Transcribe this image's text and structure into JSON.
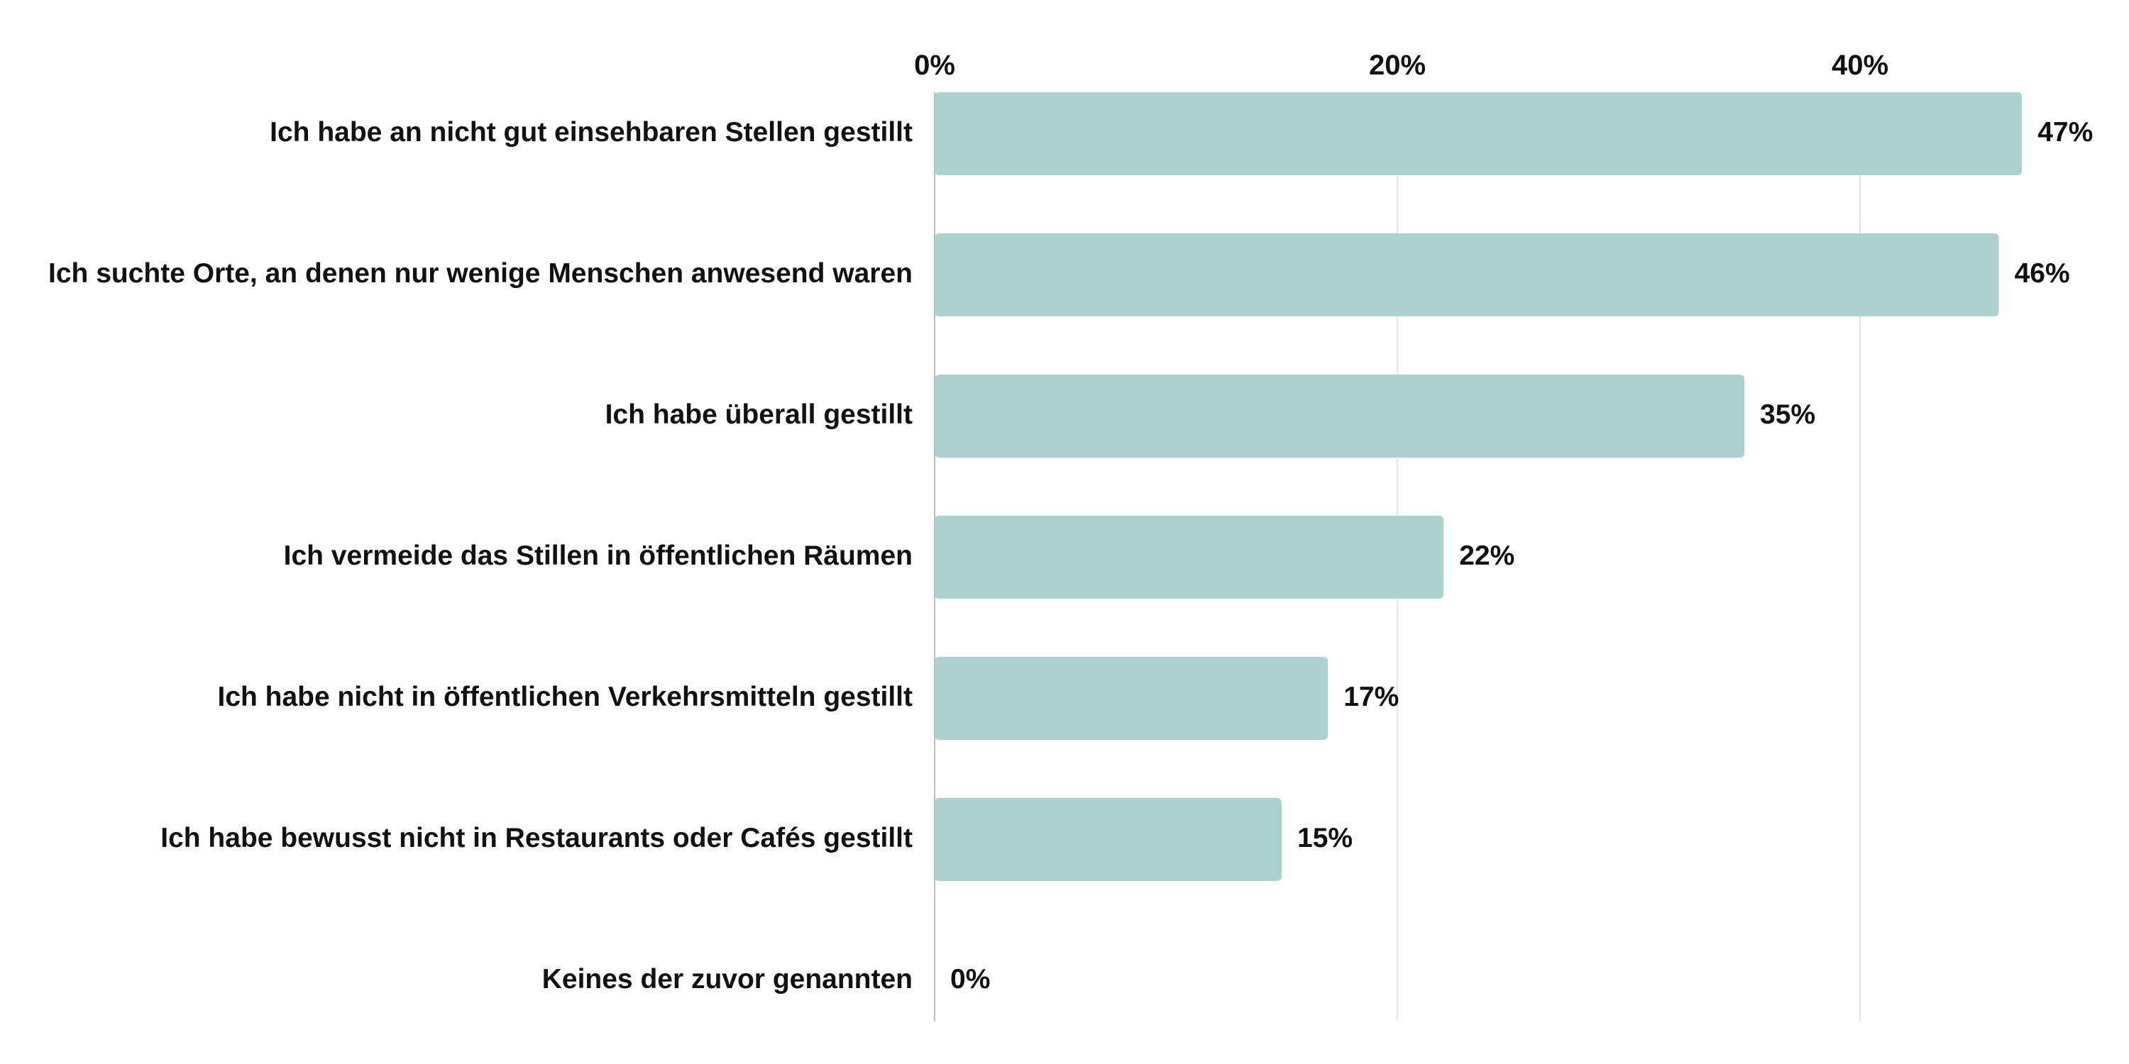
{
  "chart_data": {
    "type": "bar",
    "orientation": "horizontal",
    "categories": [
      "Ich habe an nicht gut einsehbaren Stellen gestillt",
      "Ich suchte Orte, an denen nur wenige Menschen anwesend waren",
      "Ich habe überall gestillt",
      "Ich vermeide das Stillen in öffentlichen Räumen",
      "Ich habe nicht in öffentlichen Verkehrsmitteln gestillt",
      "Ich habe bewusst nicht in Restaurants oder Cafés gestillt",
      "Keines der zuvor genannten"
    ],
    "values": [
      47,
      46,
      35,
      22,
      17,
      15,
      0
    ],
    "value_labels": [
      "47%",
      "46%",
      "35%",
      "22%",
      "17%",
      "15%",
      "0%"
    ],
    "x_ticks": [
      0,
      20,
      40
    ],
    "x_tick_labels": [
      "0%",
      "20%",
      "40%"
    ],
    "xlim": [
      0,
      50
    ],
    "x_axis_position": "top",
    "grid": true,
    "title": "",
    "xlabel": "",
    "ylabel": "",
    "colors": {
      "bar": "#acd2cf",
      "grid": "#e6e6e6",
      "axis": "#bdbdbd",
      "text": "#111111"
    }
  }
}
